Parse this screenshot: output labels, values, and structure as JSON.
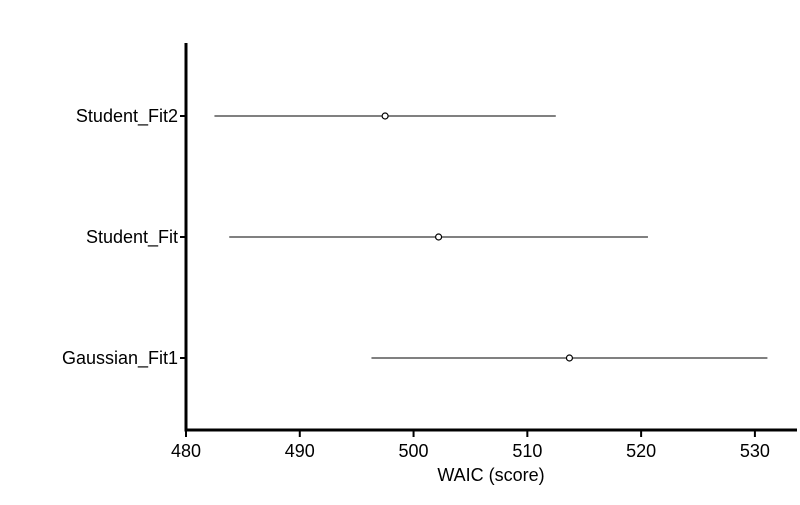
{
  "chart_data": {
    "type": "errorbar",
    "orientation": "horizontal",
    "categories": [
      "Gaussian_Fit1",
      "Student_Fit",
      "Student_Fit2"
    ],
    "values": [
      513.7,
      502.2,
      497.5
    ],
    "errors": [
      17.4,
      18.4,
      15.0
    ],
    "color": "#000000",
    "xlabel": "WAIC (score)",
    "xlim": [
      480,
      533.7
    ],
    "xticks": [
      480,
      490,
      500,
      510,
      520,
      530
    ]
  }
}
